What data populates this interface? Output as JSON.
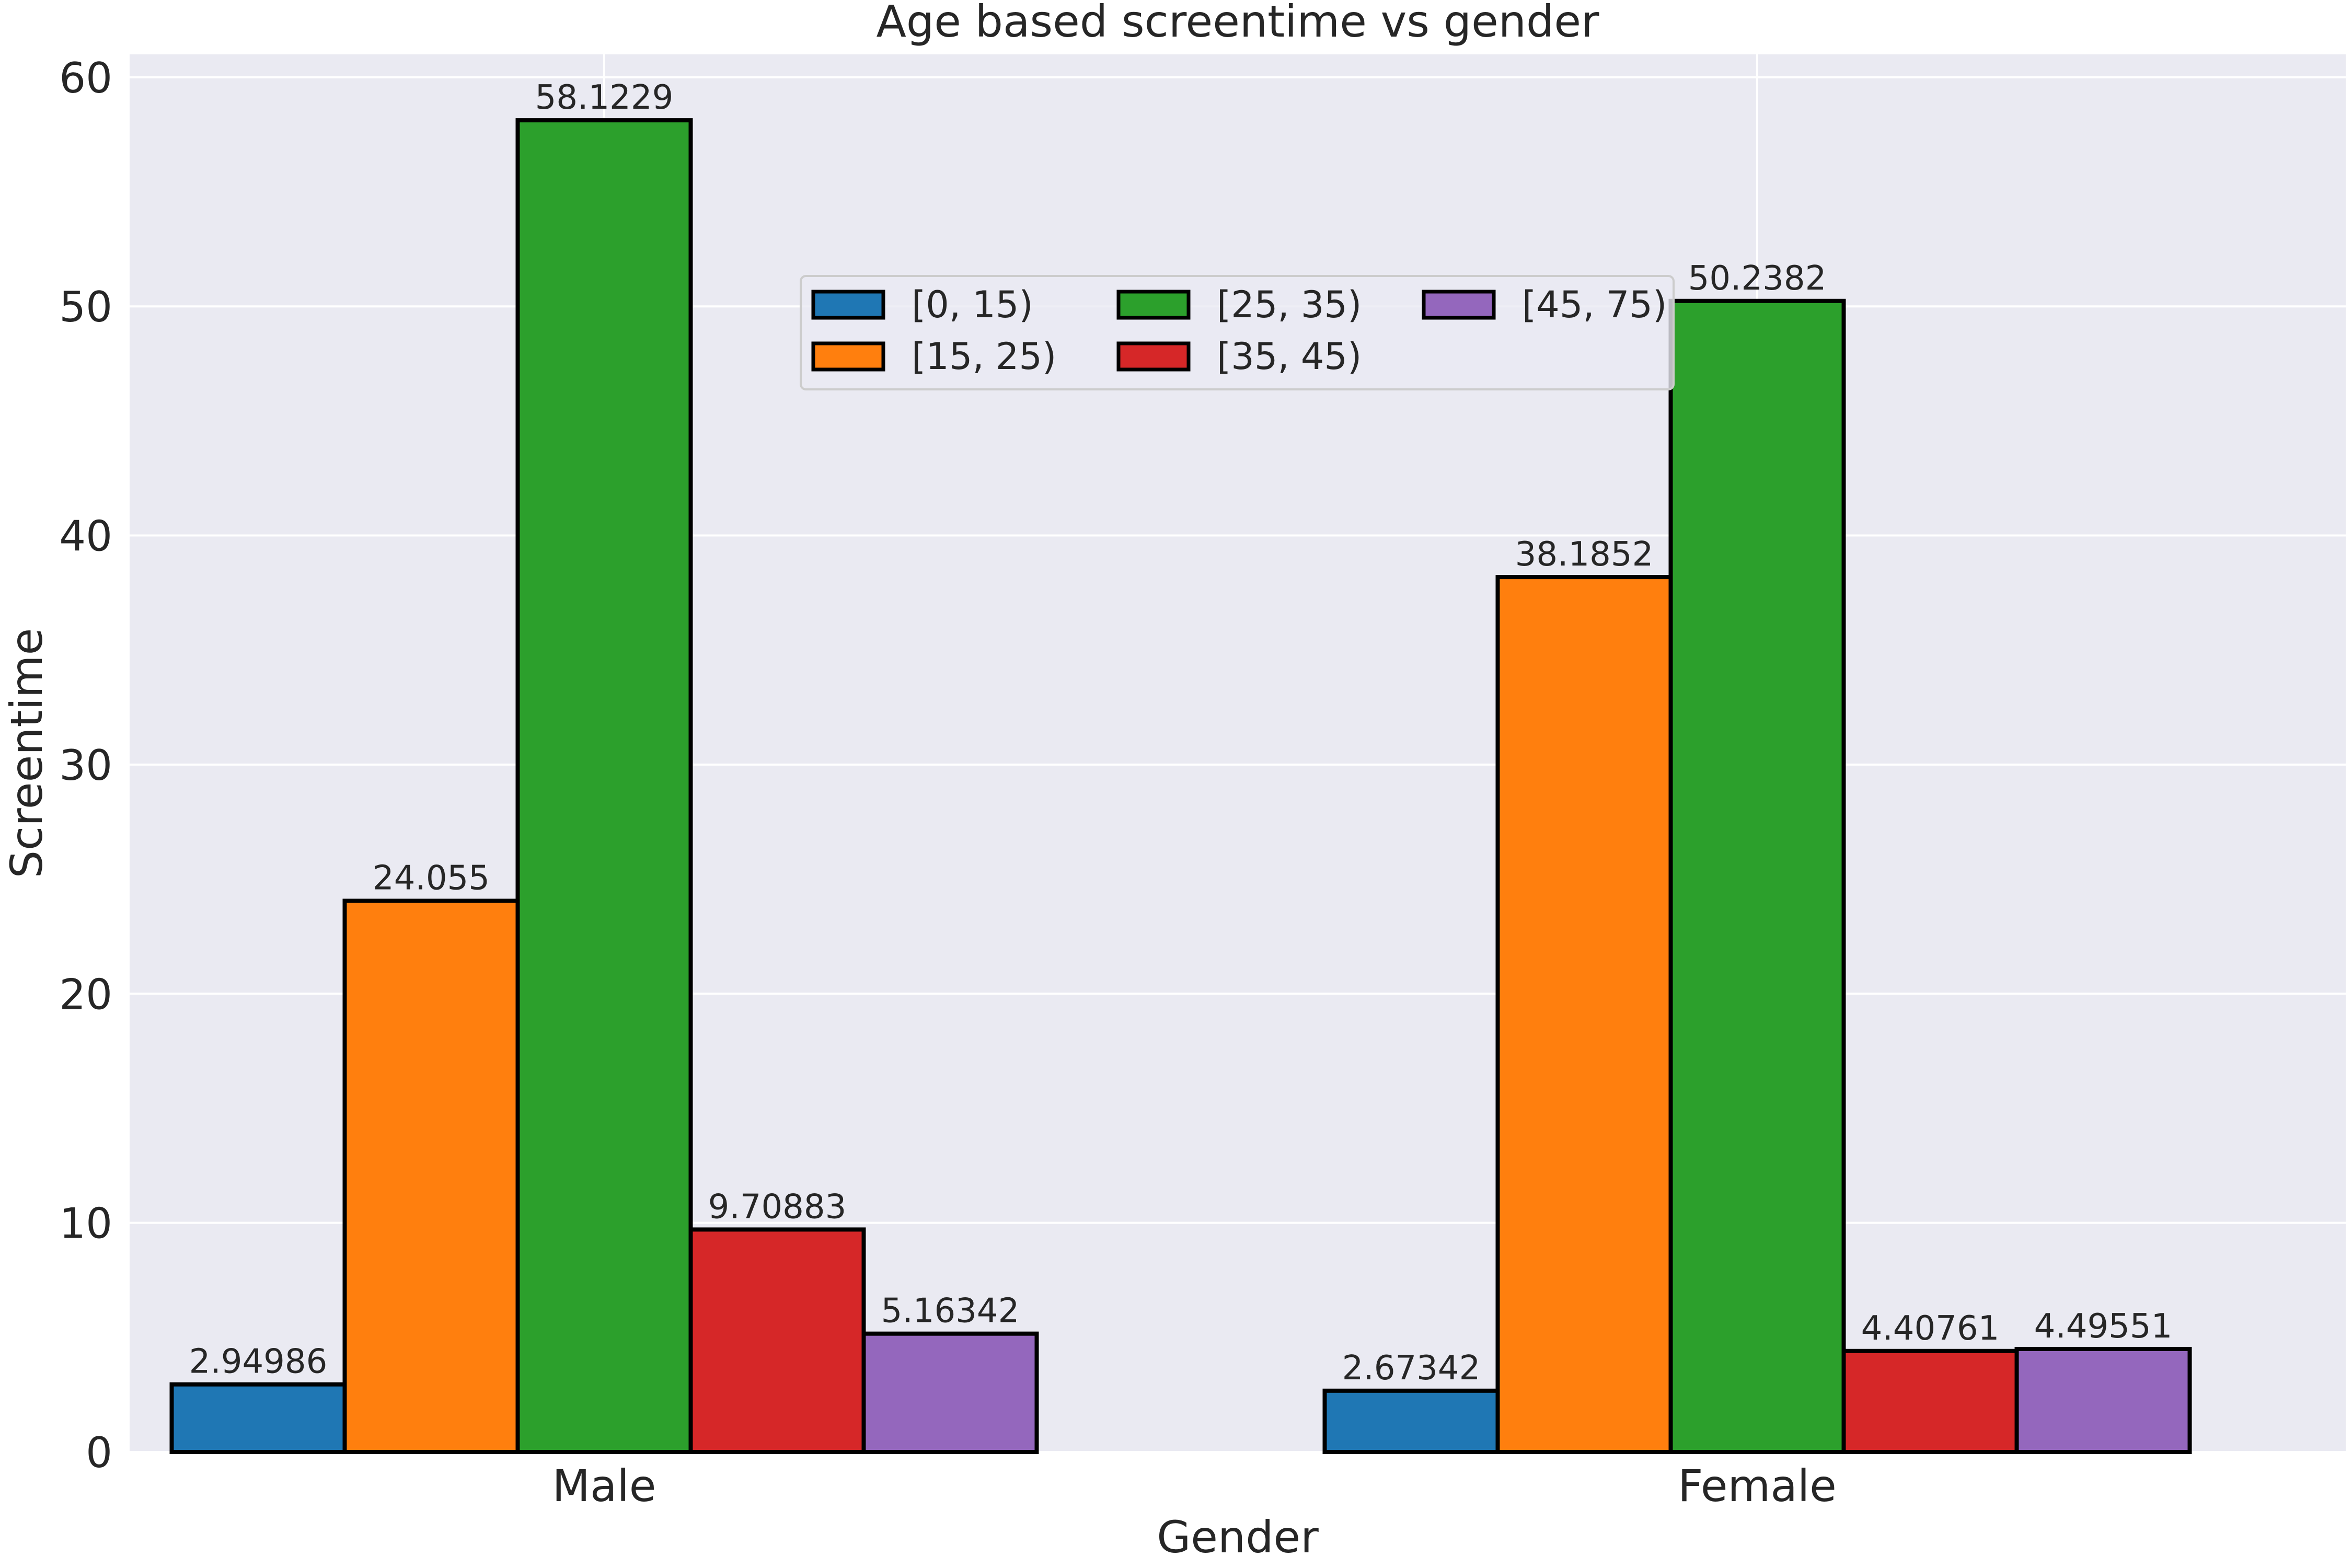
{
  "chart_data": {
    "type": "bar",
    "title": "Age based screentime vs gender",
    "xlabel": "Gender",
    "ylabel": "Screentime",
    "categories": [
      "Male",
      "Female"
    ],
    "ylim": [
      0,
      61
    ],
    "yticks": [
      0,
      10,
      20,
      30,
      40,
      50,
      60
    ],
    "grid": true,
    "legend_position": "upper-center",
    "legend_columns": 3,
    "series": [
      {
        "name": "[0, 15)",
        "color": "#1f77b4",
        "values": [
          2.94986,
          2.67342
        ],
        "labels": [
          "2.94986",
          "2.67342"
        ]
      },
      {
        "name": "[15, 25)",
        "color": "#ff7f0e",
        "values": [
          24.055,
          38.1852
        ],
        "labels": [
          "24.055",
          "38.1852"
        ]
      },
      {
        "name": "[25, 35)",
        "color": "#2ca02c",
        "values": [
          58.1229,
          50.2382
        ],
        "labels": [
          "58.1229",
          "50.2382"
        ]
      },
      {
        "name": "[35, 45)",
        "color": "#d62728",
        "values": [
          9.70883,
          4.40761
        ],
        "labels": [
          "9.70883",
          "4.40761"
        ]
      },
      {
        "name": "[45, 75)",
        "color": "#9467bd",
        "values": [
          5.16342,
          4.49551
        ],
        "labels": [
          "5.16342",
          "4.49551"
        ]
      }
    ]
  }
}
